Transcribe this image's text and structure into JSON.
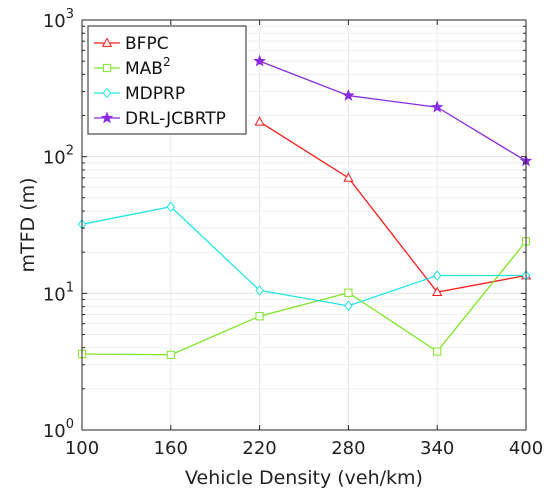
{
  "chart_data": {
    "type": "line",
    "xlabel": "Vehicle Density (veh/km)",
    "ylabel": "mTFD (m)",
    "x": [
      100,
      160,
      220,
      280,
      340,
      400
    ],
    "xticks": [
      "100",
      "160",
      "220",
      "280",
      "340",
      "400"
    ],
    "yscale": "log",
    "ylim": [
      1,
      1000
    ],
    "yticks": [
      {
        "base": "10",
        "exp": "0"
      },
      {
        "base": "10",
        "exp": "1"
      },
      {
        "base": "10",
        "exp": "2"
      },
      {
        "base": "10",
        "exp": "3"
      }
    ],
    "grid": true,
    "legend_position": "top-left",
    "series": [
      {
        "name": "BFPC",
        "name_sup": "",
        "color": "#ff1a1a",
        "marker": "triangle",
        "x": [
          220,
          280,
          340,
          400
        ],
        "values": [
          180,
          70,
          10.2,
          13.5
        ]
      },
      {
        "name": "MAB",
        "name_sup": "2",
        "color": "#7fe52a",
        "marker": "square",
        "x": [
          100,
          160,
          220,
          280,
          340,
          400
        ],
        "values": [
          3.6,
          3.55,
          6.8,
          10.1,
          3.75,
          24
        ]
      },
      {
        "name": "MDPRP",
        "name_sup": "",
        "color": "#22e6e6",
        "marker": "diamond",
        "x": [
          100,
          160,
          220,
          280,
          340,
          400
        ],
        "values": [
          32,
          43,
          10.5,
          8.1,
          13.5,
          13.5
        ]
      },
      {
        "name": "DRL-JCBRTP",
        "name_sup": "",
        "color": "#8a2be2",
        "marker": "star",
        "x": [
          220,
          280,
          340,
          400
        ],
        "values": [
          500,
          280,
          230,
          93
        ]
      }
    ]
  }
}
